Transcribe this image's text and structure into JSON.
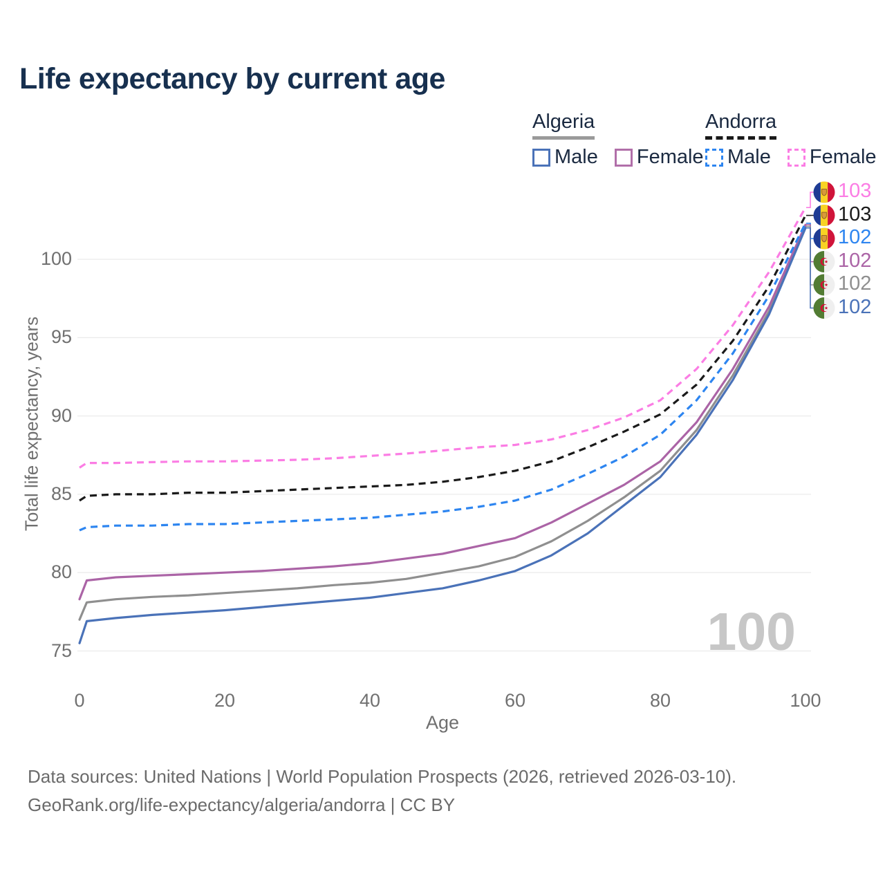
{
  "title": "Life expectancy by current age",
  "watermark_age": "100",
  "legend": {
    "groups": [
      {
        "country": "Algeria",
        "line_style": "solid",
        "underline_color": "#9a9a9a",
        "items": [
          {
            "label": "Male",
            "color": "#4a72b8",
            "dashed": false
          },
          {
            "label": "Female",
            "color": "#b16fa9",
            "dashed": false
          }
        ]
      },
      {
        "country": "Andorra",
        "line_style": "dashed",
        "underline_color": "#1a1a1a",
        "items": [
          {
            "label": "Male",
            "color": "#2d85f0",
            "dashed": true
          },
          {
            "label": "Female",
            "color": "#fb7de4",
            "dashed": true
          }
        ]
      }
    ]
  },
  "chart_data": {
    "type": "line",
    "title": "Life expectancy by current age",
    "xlabel": "Age",
    "ylabel": "Total life expectancy, years",
    "xlim": [
      0,
      100
    ],
    "ylim": [
      75,
      100
    ],
    "xticks": [
      0,
      20,
      40,
      60,
      80,
      100
    ],
    "yticks": [
      75,
      80,
      85,
      90,
      95,
      100
    ],
    "grid": "horizontal",
    "legend_position": "top-right",
    "x": [
      0,
      1,
      5,
      10,
      15,
      20,
      25,
      30,
      35,
      40,
      45,
      50,
      55,
      60,
      65,
      70,
      75,
      80,
      85,
      90,
      95,
      100
    ],
    "series": [
      {
        "name": "Algeria All",
        "country": "Algeria",
        "sex": "All",
        "style": "solid",
        "color": "#8f8f8f",
        "flag": "algeria",
        "end_label": "102",
        "values": [
          77.0,
          78.1,
          78.3,
          78.45,
          78.55,
          78.7,
          78.85,
          79.0,
          79.2,
          79.35,
          79.6,
          80.0,
          80.4,
          81.0,
          82.0,
          83.3,
          84.8,
          86.5,
          89.1,
          92.6,
          96.7,
          102.1
        ]
      },
      {
        "name": "Algeria Female",
        "country": "Algeria",
        "sex": "Female",
        "style": "solid",
        "color": "#ab64a6",
        "flag": "algeria",
        "end_label": "102",
        "values": [
          78.3,
          79.5,
          79.7,
          79.8,
          79.9,
          80.0,
          80.1,
          80.25,
          80.4,
          80.6,
          80.9,
          81.2,
          81.7,
          82.2,
          83.2,
          84.4,
          85.6,
          87.1,
          89.6,
          93.0,
          97.0,
          102.2
        ]
      },
      {
        "name": "Algeria Male",
        "country": "Algeria",
        "sex": "Male",
        "style": "solid",
        "color": "#4a72b8",
        "flag": "algeria",
        "end_label": "102",
        "values": [
          75.5,
          76.9,
          77.1,
          77.3,
          77.45,
          77.6,
          77.8,
          78.0,
          78.2,
          78.4,
          78.7,
          79.0,
          79.5,
          80.1,
          81.1,
          82.5,
          84.3,
          86.1,
          88.8,
          92.3,
          96.5,
          102.0
        ]
      },
      {
        "name": "Andorra Female",
        "country": "Andorra",
        "sex": "Female",
        "style": "dashed",
        "color": "#fb7de4",
        "flag": "andorra",
        "end_label": "103",
        "values": [
          86.7,
          87.0,
          87.0,
          87.05,
          87.1,
          87.1,
          87.15,
          87.2,
          87.3,
          87.45,
          87.6,
          87.8,
          88.0,
          88.15,
          88.5,
          89.1,
          89.9,
          91.0,
          93.0,
          95.8,
          99.2,
          103.3
        ]
      },
      {
        "name": "Andorra All",
        "country": "Andorra",
        "sex": "All",
        "style": "dashed",
        "color": "#1a1a1a",
        "flag": "andorra",
        "end_label": "103",
        "values": [
          84.6,
          84.9,
          85.0,
          85.0,
          85.1,
          85.1,
          85.2,
          85.3,
          85.4,
          85.5,
          85.6,
          85.8,
          86.1,
          86.5,
          87.1,
          88.0,
          89.0,
          90.1,
          92.0,
          94.8,
          98.3,
          102.8
        ]
      },
      {
        "name": "Andorra Male",
        "country": "Andorra",
        "sex": "Male",
        "style": "dashed",
        "color": "#2d85f0",
        "flag": "andorra",
        "end_label": "102",
        "values": [
          82.7,
          82.9,
          83.0,
          83.0,
          83.1,
          83.1,
          83.2,
          83.3,
          83.4,
          83.5,
          83.7,
          83.9,
          84.2,
          84.6,
          85.3,
          86.3,
          87.4,
          88.8,
          91.0,
          94.0,
          97.7,
          102.3
        ]
      }
    ],
    "flag_colors": {
      "andorra": {
        "left": "#1e3c94",
        "middle": "#f8d224",
        "right": "#d0143a",
        "emblem": "#d89a3a",
        "emblem_border": "#8a5a20"
      },
      "algeria": {
        "left": "#527c33",
        "right": "#efefef",
        "crescent": "#d21034"
      }
    },
    "gridline_color": "#ebebeb",
    "tick_color": "#707070"
  },
  "footer": {
    "line1": "Data sources: United Nations | World Population Prospects (2026, retrieved 2026-03-10).",
    "line2": "GeoRank.org/life-expectancy/algeria/andorra | CC BY"
  }
}
